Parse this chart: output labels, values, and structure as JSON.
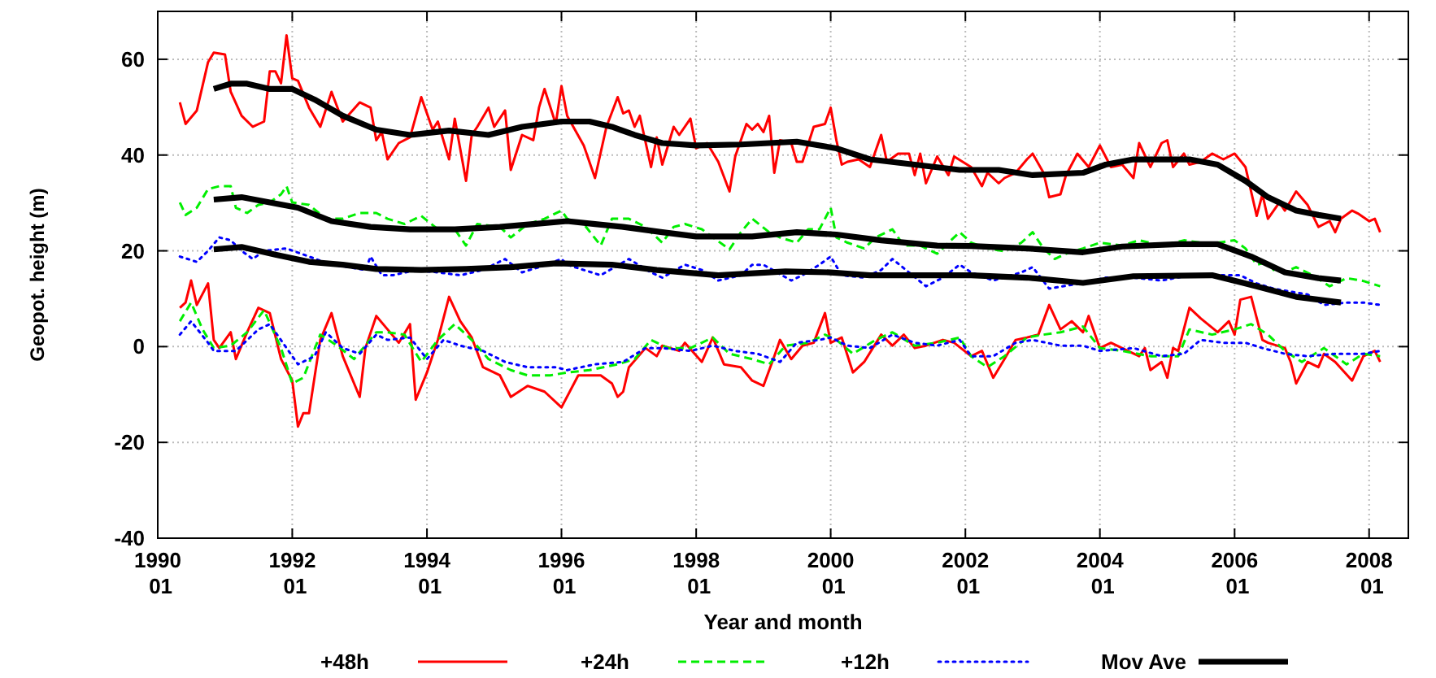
{
  "chart_data": {
    "type": "line",
    "xlabel": "Year and month",
    "ylabel": "Geopot. height (m)",
    "xlim": [
      "1990-01",
      "2008-08"
    ],
    "ylim": [
      -40,
      70
    ],
    "xticks": [
      {
        "value": "1990-01",
        "label": "1990 01"
      },
      {
        "value": "1992-01",
        "label": "1992 01"
      },
      {
        "value": "1994-01",
        "label": "1994 01"
      },
      {
        "value": "1996-01",
        "label": "1996 01"
      },
      {
        "value": "1998-01",
        "label": "1998 01"
      },
      {
        "value": "2000-01",
        "label": "2000 01"
      },
      {
        "value": "2002-01",
        "label": "2002 01"
      },
      {
        "value": "2004-01",
        "label": "2004 01"
      },
      {
        "value": "2006-01",
        "label": "2006 01"
      },
      {
        "value": "2008-01",
        "label": "2008 01"
      }
    ],
    "yticks": [
      -40,
      -20,
      0,
      20,
      40,
      60
    ],
    "grid": true,
    "legend": "bottom",
    "series": [
      {
        "name": "+48h",
        "color": "#ff0000",
        "line_style": "solid",
        "x": [
          "1990-05",
          "1990-06",
          "1990-08",
          "1990-10",
          "1990-11",
          "1991-01",
          "1991-02",
          "1991-04",
          "1991-06",
          "1991-08",
          "1991-09",
          "1991-10",
          "1991-11",
          "1991-12",
          "1992-01",
          "1992-02",
          "1992-04",
          "1992-06",
          "1992-08",
          "1992-10",
          "1993-01",
          "1993-03",
          "1993-04",
          "1993-05",
          "1993-06",
          "1993-08",
          "1993-10",
          "1993-12",
          "1994-02",
          "1994-03",
          "1994-05",
          "1994-06",
          "1994-08",
          "1994-09",
          "1994-10",
          "1994-12",
          "1995-01",
          "1995-03",
          "1995-04",
          "1995-06",
          "1995-08",
          "1995-09",
          "1995-10",
          "1995-12",
          "1996-01",
          "1996-02",
          "1996-05",
          "1996-07",
          "1996-09",
          "1996-11",
          "1996-12",
          "1997-01",
          "1997-02",
          "1997-03",
          "1997-05",
          "1997-06",
          "1997-07",
          "1997-09",
          "1997-10",
          "1997-12",
          "1998-01",
          "1998-03",
          "1998-05",
          "1998-07",
          "1998-08",
          "1998-10",
          "1998-11",
          "1998-12",
          "1999-01",
          "1999-02",
          "1999-03",
          "1999-04",
          "1999-06",
          "1999-07",
          "1999-08",
          "1999-10",
          "1999-12",
          "2000-01",
          "2000-02",
          "2000-03",
          "2000-04",
          "2000-06",
          "2000-08",
          "2000-10",
          "2000-11",
          "2001-01",
          "2001-03",
          "2001-04",
          "2001-05",
          "2001-06",
          "2001-08",
          "2001-10",
          "2001-11",
          "2002-02",
          "2002-04",
          "2002-05",
          "2002-07",
          "2002-08",
          "2002-10",
          "2002-12",
          "2003-01",
          "2003-03",
          "2003-04",
          "2003-06",
          "2003-07",
          "2003-09",
          "2003-11",
          "2004-01",
          "2004-03",
          "2004-05",
          "2004-07",
          "2004-08",
          "2004-10",
          "2004-12",
          "2005-01",
          "2005-02",
          "2005-04",
          "2005-05",
          "2005-07",
          "2005-09",
          "2005-11",
          "2006-01",
          "2006-03",
          "2006-05",
          "2006-06",
          "2006-07",
          "2006-09",
          "2006-10",
          "2006-12",
          "2007-02",
          "2007-04",
          "2007-06",
          "2007-07",
          "2007-08",
          "2007-10",
          "2007-11",
          "2008-01",
          "2008-02",
          "2008-03"
        ],
        "values": [
          51,
          46.5,
          49.3,
          59.4,
          61.4,
          61,
          53.2,
          48.2,
          45.9,
          47,
          57.5,
          57.5,
          55,
          65,
          56,
          55.5,
          49.9,
          45.9,
          53.2,
          47,
          51,
          49.9,
          43.1,
          44.8,
          39.1,
          42.5,
          43.7,
          52.1,
          45.3,
          47,
          39.1,
          47.6,
          34.6,
          44.2,
          45.9,
          49.9,
          45.9,
          49.3,
          36.9,
          44.2,
          43.1,
          49.9,
          53.8,
          46.5,
          54.4,
          48.2,
          42,
          35.2,
          45.9,
          52.1,
          48.7,
          49.3,
          45.9,
          48.2,
          37.5,
          43.7,
          38,
          45.9,
          44.2,
          47.6,
          41.4,
          42.5,
          38.6,
          32.4,
          39.7,
          46.5,
          45.3,
          46.5,
          44.8,
          48.2,
          36.3,
          43.1,
          42.5,
          38.6,
          38.6,
          45.9,
          46.5,
          49.9,
          43.1,
          38,
          38.6,
          39.1,
          37.5,
          44.2,
          38.6,
          40.3,
          40.3,
          35.8,
          40.3,
          34.1,
          39.7,
          35.8,
          39.7,
          37.5,
          33.5,
          36.3,
          34.1,
          35.2,
          36.3,
          39.1,
          40.3,
          36.3,
          31.2,
          31.8,
          35.8,
          40.3,
          37.5,
          42,
          37.5,
          38,
          35.2,
          42.5,
          37.5,
          42.5,
          43.1,
          37.5,
          40.3,
          38,
          38.6,
          40.3,
          39.1,
          40.3,
          37.5,
          27.3,
          31.8,
          26.7,
          30.1,
          28.4,
          32.4,
          29.6,
          25,
          26.2,
          23.9,
          26.7,
          28.4,
          27.8,
          26.2,
          26.7,
          23.9
        ]
      },
      {
        "name": "+24h",
        "color": "#00ee00",
        "line_style": "dashed",
        "x": [
          "1990-05",
          "1990-06",
          "1990-08",
          "1990-10",
          "1990-12",
          "1991-02",
          "1991-03",
          "1991-05",
          "1991-07",
          "1991-09",
          "1991-11",
          "1991-12",
          "1992-01",
          "1992-04",
          "1992-07",
          "1992-10",
          "1993-01",
          "1993-04",
          "1993-06",
          "1993-09",
          "1993-12",
          "1994-03",
          "1994-06",
          "1994-08",
          "1994-10",
          "1995-02",
          "1995-04",
          "1995-07",
          "1995-10",
          "1996-01",
          "1996-02",
          "1996-05",
          "1996-08",
          "1996-10",
          "1997-01",
          "1997-04",
          "1997-07",
          "1997-09",
          "1997-11",
          "1998-02",
          "1998-07",
          "1998-09",
          "1998-11",
          "1999-02",
          "1999-04",
          "1999-07",
          "1999-09",
          "1999-11",
          "2000-01",
          "2000-02",
          "2000-04",
          "2000-07",
          "2000-09",
          "2000-12",
          "2001-02",
          "2001-05",
          "2001-08",
          "2001-10",
          "2001-12",
          "2002-02",
          "2002-05",
          "2002-08",
          "2002-11",
          "2003-01",
          "2003-03",
          "2003-05",
          "2003-07",
          "2003-10",
          "2004-01",
          "2004-05",
          "2004-08",
          "2004-12",
          "2005-04",
          "2005-07",
          "2005-10",
          "2006-01",
          "2006-03",
          "2006-05",
          "2006-07",
          "2006-08",
          "2006-10",
          "2006-12",
          "2007-03",
          "2007-06",
          "2007-09",
          "2007-12",
          "2008-03"
        ],
        "values": [
          30.1,
          27.5,
          29,
          32.9,
          33.5,
          33.5,
          29,
          27.9,
          29.6,
          30.1,
          31.8,
          33.5,
          30.1,
          29.6,
          26.7,
          26.7,
          27.9,
          27.9,
          26.7,
          25.6,
          27.3,
          24.5,
          24.5,
          21.1,
          25.6,
          25,
          22.8,
          25.6,
          26.7,
          28.4,
          26.7,
          25.6,
          21.1,
          26.7,
          26.7,
          25,
          21.7,
          25,
          25.6,
          24.5,
          20.3,
          23.9,
          26.7,
          23.9,
          22.8,
          21.7,
          24.5,
          24.5,
          29,
          22.8,
          21.7,
          20.5,
          22.8,
          24.5,
          21.1,
          21.1,
          19.4,
          21.7,
          23.9,
          21.7,
          20.5,
          19.9,
          21.7,
          23.9,
          20.5,
          18.3,
          19.4,
          20.5,
          21.7,
          21.1,
          22.2,
          21.1,
          22.2,
          21.7,
          21.7,
          22.2,
          20.5,
          17.1,
          17.7,
          16,
          15.5,
          16.6,
          14.9,
          12.6,
          14.3,
          13.7,
          12.6
        ]
      },
      {
        "name": "+12h",
        "color": "#0000ff",
        "line_style": "dotted",
        "x": [
          "1990-05",
          "1990-08",
          "1990-10",
          "1990-12",
          "1991-02",
          "1991-04",
          "1991-06",
          "1991-08",
          "1991-12",
          "1992-04",
          "1992-08",
          "1992-11",
          "1993-02",
          "1993-03",
          "1993-05",
          "1993-07",
          "1993-11",
          "1994-03",
          "1994-07",
          "1994-11",
          "1995-03",
          "1995-06",
          "1995-09",
          "1996-01",
          "1996-02",
          "1996-05",
          "1996-08",
          "1997-01",
          "1997-05",
          "1997-07",
          "1997-11",
          "1998-02",
          "1998-05",
          "1998-09",
          "1998-11",
          "1999-01",
          "1999-06",
          "1999-08",
          "1999-11",
          "2000-01",
          "2000-03",
          "2000-07",
          "2000-10",
          "2000-12",
          "2001-03",
          "2001-06",
          "2001-09",
          "2001-12",
          "2002-02",
          "2002-06",
          "2002-11",
          "2003-01",
          "2003-04",
          "2003-10",
          "2004-02",
          "2004-07",
          "2004-12",
          "2005-05",
          "2005-10",
          "2006-02",
          "2006-05",
          "2006-08",
          "2006-11",
          "2007-02",
          "2007-05",
          "2007-09",
          "2007-12",
          "2008-03"
        ],
        "values": [
          18.8,
          17.7,
          20,
          22.8,
          22.2,
          20,
          18.3,
          20,
          20.5,
          18.8,
          17.1,
          16.6,
          16,
          18.8,
          14.9,
          14.9,
          16,
          15.5,
          14.9,
          16,
          18.3,
          15.5,
          16.6,
          18.3,
          17.1,
          16,
          14.9,
          18.3,
          15.5,
          14.4,
          17.1,
          16,
          13.8,
          14.9,
          17.1,
          17.1,
          13.8,
          14.9,
          17.1,
          18.8,
          14.9,
          14.4,
          16,
          18.3,
          15.5,
          12.6,
          14.4,
          17.1,
          15.5,
          13.8,
          15.5,
          16.6,
          12.1,
          13.3,
          14.4,
          14.4,
          13.8,
          14.9,
          14.9,
          14.9,
          13.2,
          12.1,
          11.5,
          10.9,
          8.7,
          9.2,
          9.2,
          8.7
        ]
      },
      {
        "color": "#ff0000",
        "line_style": "solid",
        "x": [
          "1990-05",
          "1990-06",
          "1990-07",
          "1990-08",
          "1990-10",
          "1990-11",
          "1990-12",
          "1991-02",
          "1991-03",
          "1991-05",
          "1991-07",
          "1991-09",
          "1991-11",
          "1992-01",
          "1992-02",
          "1992-03",
          "1992-04",
          "1992-06",
          "1992-08",
          "1992-10",
          "1993-01",
          "1993-02",
          "1993-04",
          "1993-06",
          "1993-08",
          "1993-10",
          "1993-11",
          "1994-01",
          "1994-03",
          "1994-05",
          "1994-07",
          "1994-09",
          "1994-11",
          "1995-02",
          "1995-04",
          "1995-07",
          "1995-10",
          "1996-01",
          "1996-04",
          "1996-08",
          "1996-10",
          "1996-11",
          "1996-12",
          "1997-01",
          "1997-04",
          "1997-06",
          "1997-07",
          "1997-10",
          "1997-11",
          "1998-02",
          "1998-04",
          "1998-06",
          "1998-09",
          "1998-11",
          "1999-01",
          "1999-03",
          "1999-04",
          "1999-06",
          "1999-08",
          "1999-10",
          "1999-12",
          "2000-01",
          "2000-03",
          "2000-05",
          "2000-07",
          "2000-10",
          "2000-12",
          "2001-02",
          "2001-04",
          "2001-06",
          "2001-09",
          "2001-11",
          "2002-02",
          "2002-04",
          "2002-06",
          "2002-08",
          "2002-10",
          "2002-12",
          "2003-02",
          "2003-04",
          "2003-06",
          "2003-08",
          "2003-10",
          "2003-11",
          "2004-01",
          "2004-03",
          "2004-06",
          "2004-08",
          "2004-09",
          "2004-10",
          "2004-12",
          "2005-01",
          "2005-02",
          "2005-03",
          "2005-05",
          "2005-07",
          "2005-10",
          "2005-12",
          "2006-01",
          "2006-02",
          "2006-04",
          "2006-06",
          "2006-07",
          "2006-10",
          "2006-11",
          "2006-12",
          "2007-02",
          "2007-04",
          "2007-05",
          "2007-07",
          "2007-10",
          "2007-12",
          "2008-02",
          "2008-03"
        ],
        "values": [
          8.1,
          9.2,
          13.8,
          8.7,
          13.2,
          1.4,
          -0.3,
          3,
          -2.6,
          3,
          8.1,
          7,
          -2.6,
          -7.1,
          -16.7,
          -13.9,
          -13.9,
          1.4,
          7,
          -2,
          -10.5,
          -0.3,
          6.4,
          3.6,
          0.8,
          4.7,
          -11.1,
          -5.4,
          1.4,
          10.4,
          5.3,
          1.9,
          -4.3,
          -6,
          -10.5,
          -8.2,
          -9.4,
          -12.7,
          -6,
          -6,
          -7.7,
          -10.5,
          -9.4,
          -4.3,
          -0.3,
          -2,
          0.2,
          -0.9,
          0.8,
          -3.2,
          1.9,
          -3.7,
          -4.3,
          -7.1,
          -8.2,
          -2,
          1.4,
          -2.6,
          0.2,
          0.8,
          7,
          0.8,
          1.9,
          -5.4,
          -3.2,
          2.5,
          0.2,
          2.5,
          -0.3,
          0.2,
          1.4,
          0.8,
          -2,
          -0.9,
          -6.5,
          -2.6,
          1.4,
          1.9,
          2.5,
          8.7,
          3.6,
          5.3,
          3,
          6.4,
          -0.3,
          0.8,
          -0.9,
          -2,
          -0.3,
          -4.9,
          -3.2,
          -6.5,
          -0.3,
          -0.9,
          8.1,
          5.9,
          3,
          5.3,
          2.5,
          9.8,
          10.4,
          1.4,
          0.8,
          -0.3,
          -3.2,
          -7.7,
          -3.2,
          -4.3,
          -1.5,
          -3.2,
          -7.1,
          -2,
          -0.9,
          -3.2
        ]
      },
      {
        "color": "#00ee00",
        "line_style": "dashed",
        "x": [
          "1990-05",
          "1990-07",
          "1990-09",
          "1990-11",
          "1991-02",
          "1991-05",
          "1991-08",
          "1991-11",
          "1992-01",
          "1992-03",
          "1992-06",
          "1992-09",
          "1992-12",
          "1993-04",
          "1993-06",
          "1993-09",
          "1993-12",
          "1994-03",
          "1994-06",
          "1994-09",
          "1994-12",
          "1995-04",
          "1995-07",
          "1995-11",
          "1996-02",
          "1996-06",
          "1996-11",
          "1997-02",
          "1997-05",
          "1997-08",
          "1997-12",
          "1998-04",
          "1998-07",
          "1998-11",
          "1999-02",
          "1999-05",
          "1999-09",
          "1999-12",
          "2000-02",
          "2000-05",
          "2000-09",
          "2000-12",
          "2001-04",
          "2001-08",
          "2001-12",
          "2002-02",
          "2002-05",
          "2002-08",
          "2002-12",
          "2003-03",
          "2003-06",
          "2003-10",
          "2004-01",
          "2004-05",
          "2004-10",
          "2005-03",
          "2005-05",
          "2005-09",
          "2006-01",
          "2006-04",
          "2006-07",
          "2006-10",
          "2007-01",
          "2007-05",
          "2007-09",
          "2007-12",
          "2008-03"
        ],
        "values": [
          5.3,
          9.2,
          3.6,
          -0.3,
          0.2,
          3,
          7.6,
          -0.3,
          -7.7,
          -6.5,
          2.5,
          0.2,
          -2.6,
          3,
          3,
          2.5,
          -3.2,
          1.4,
          4.7,
          1.4,
          -2.6,
          -4.9,
          -6,
          -6,
          -5.4,
          -4.9,
          -3.7,
          -2.6,
          1.4,
          -0.3,
          -0.3,
          1.9,
          -1.5,
          -2.6,
          -3.7,
          0.2,
          0.8,
          2.5,
          1.4,
          -1.5,
          1.4,
          3,
          0.2,
          0.8,
          1.9,
          -2,
          -4.3,
          -2,
          1.9,
          2.5,
          3,
          4.2,
          -0.3,
          -0.9,
          -2,
          -2,
          3.6,
          2.5,
          3.6,
          4.7,
          2.5,
          -0.9,
          -3.2,
          -0.3,
          -3.7,
          -1.5,
          -2
        ]
      },
      {
        "color": "#0000ff",
        "line_style": "dotted",
        "x": [
          "1990-05",
          "1990-07",
          "1990-10",
          "1990-11",
          "1991-03",
          "1991-07",
          "1991-09",
          "1991-12",
          "1992-02",
          "1992-05",
          "1992-07",
          "1992-10",
          "1993-01",
          "1993-04",
          "1993-06",
          "1993-10",
          "1994-01",
          "1994-04",
          "1994-07",
          "1994-11",
          "1995-03",
          "1995-07",
          "1995-12",
          "1996-02",
          "1996-07",
          "1996-12",
          "1997-04",
          "1997-07",
          "1997-12",
          "1998-04",
          "1998-08",
          "1998-12",
          "1999-04",
          "1999-07",
          "1999-11",
          "2000-01",
          "2000-04",
          "2000-08",
          "2000-12",
          "2001-04",
          "2001-08",
          "2001-12",
          "2002-02",
          "2002-06",
          "2002-10",
          "2003-01",
          "2003-06",
          "2003-10",
          "2004-01",
          "2004-07",
          "2004-12",
          "2005-04",
          "2005-07",
          "2005-11",
          "2006-03",
          "2006-06",
          "2006-10",
          "2007-02",
          "2007-07",
          "2007-12",
          "2008-03"
        ],
        "values": [
          2.5,
          5.3,
          0.8,
          -0.9,
          -0.9,
          3.6,
          4.7,
          -0.3,
          -3.7,
          -2,
          3,
          -0.3,
          -1.5,
          2.5,
          1.4,
          1.9,
          -2.6,
          1.4,
          0.2,
          -0.9,
          -3.2,
          -4.3,
          -4.3,
          -4.9,
          -3.7,
          -3.2,
          -0.3,
          -0.3,
          -0.9,
          0.2,
          -0.9,
          -1.5,
          -3.2,
          0.8,
          1.4,
          1.9,
          0.2,
          -0.3,
          2.5,
          0.8,
          0.2,
          1.4,
          -2,
          -2,
          0.8,
          1.4,
          0.2,
          0.2,
          -0.9,
          -0.3,
          -2,
          -1.5,
          1.4,
          0.8,
          0.8,
          -0.3,
          -1.5,
          -2,
          -1.5,
          -1.5,
          -0.9
        ]
      },
      {
        "name": "Mov Ave",
        "color": "#000000",
        "line_style": "solid",
        "x": [
          "1990-11",
          "1991-02",
          "1991-05",
          "1991-09",
          "1992-01",
          "1992-05",
          "1992-10",
          "1993-04",
          "1993-10",
          "1994-05",
          "1994-12",
          "1995-06",
          "1996-01",
          "1996-06",
          "1996-10",
          "1997-02",
          "1997-07",
          "1998-01",
          "1998-09",
          "1999-07",
          "2000-02",
          "2000-08",
          "2001-04",
          "2001-12",
          "2002-07",
          "2003-01",
          "2003-10",
          "2004-02",
          "2004-07",
          "2005-05",
          "2005-10",
          "2006-03",
          "2006-07",
          "2006-12",
          "2007-04",
          "2007-08"
        ],
        "values": [
          53.8,
          54.9,
          54.9,
          53.8,
          53.8,
          51.6,
          48.2,
          45.3,
          44.2,
          45.1,
          44.2,
          45.9,
          47,
          47,
          45.9,
          44.2,
          42.5,
          42,
          42.2,
          42.8,
          41.4,
          39.1,
          38,
          36.9,
          36.9,
          35.8,
          36.3,
          38,
          39.1,
          39.1,
          38,
          34.6,
          31.2,
          28.4,
          27.5,
          26.7
        ]
      },
      {
        "color": "#000000",
        "line_style": "solid",
        "x": [
          "1990-11",
          "1991-04",
          "1991-09",
          "1992-02",
          "1992-08",
          "1993-03",
          "1993-10",
          "1994-06",
          "1995-02",
          "1995-08",
          "1996-02",
          "1996-07",
          "1996-12",
          "1997-07",
          "1998-01",
          "1998-11",
          "1999-07",
          "2000-02",
          "2000-10",
          "2001-08",
          "2002-02",
          "2002-12",
          "2003-10",
          "2004-05",
          "2005-03",
          "2005-10",
          "2006-04",
          "2006-10",
          "2007-04",
          "2007-08"
        ],
        "values": [
          30.7,
          31.2,
          30.1,
          29,
          26.2,
          25,
          24.5,
          24.5,
          25,
          25.6,
          26.2,
          25.6,
          25,
          23.9,
          23,
          23,
          23.9,
          23.4,
          22.2,
          21.1,
          21,
          20.5,
          19.7,
          20.9,
          21.4,
          21.4,
          18.8,
          15.5,
          14.3,
          13.8
        ]
      },
      {
        "color": "#000000",
        "line_style": "solid",
        "x": [
          "1990-11",
          "1991-04",
          "1991-10",
          "1992-04",
          "1992-10",
          "1993-04",
          "1993-12",
          "1994-08",
          "1995-04",
          "1995-12",
          "1996-10",
          "1997-06",
          "1998-05",
          "1999-05",
          "2000-01",
          "2000-08",
          "2001-06",
          "2002-02",
          "2002-12",
          "2003-10",
          "2004-07",
          "2005-09",
          "2006-05",
          "2006-12",
          "2007-08"
        ],
        "values": [
          20.3,
          20.8,
          19.2,
          17.7,
          17.1,
          16.2,
          16,
          16.2,
          16.6,
          17.4,
          17.1,
          16,
          14.9,
          15.7,
          15.5,
          14.9,
          14.9,
          14.9,
          14.4,
          13.3,
          14.7,
          14.9,
          12.6,
          10.4,
          9.2
        ]
      }
    ]
  }
}
